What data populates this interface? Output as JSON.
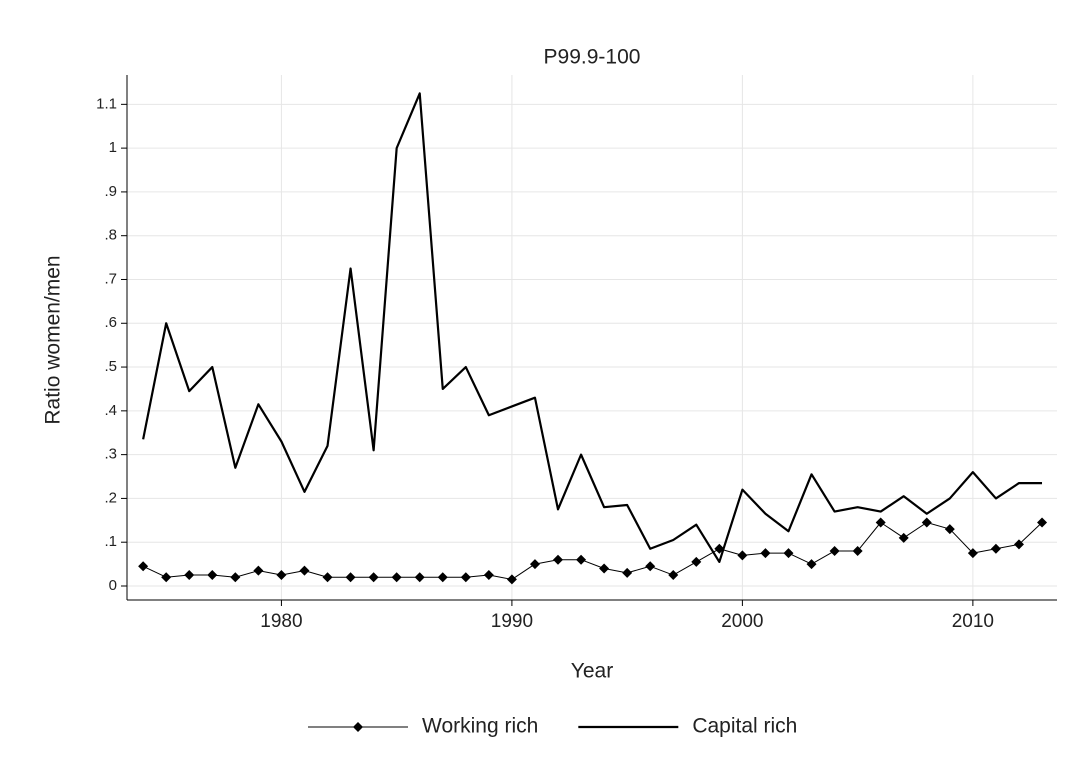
{
  "chart_data": {
    "type": "line",
    "title": "P99.9-100",
    "xlabel": "Year",
    "ylabel": "Ratio women/men",
    "x": [
      1974,
      1975,
      1976,
      1977,
      1978,
      1979,
      1980,
      1981,
      1982,
      1983,
      1984,
      1985,
      1986,
      1987,
      1988,
      1989,
      1990,
      1991,
      1992,
      1993,
      1994,
      1995,
      1996,
      1997,
      1998,
      1999,
      2000,
      2001,
      2002,
      2003,
      2004,
      2005,
      2006,
      2007,
      2008,
      2009,
      2010,
      2011,
      2012,
      2013
    ],
    "series": [
      {
        "name": "Working rich",
        "color": "#000000",
        "marker": "diamond",
        "values": [
          0.045,
          0.02,
          0.025,
          0.025,
          0.02,
          0.035,
          0.025,
          0.035,
          0.02,
          0.02,
          0.02,
          0.02,
          0.02,
          0.02,
          0.02,
          0.025,
          0.015,
          0.05,
          0.06,
          0.06,
          0.04,
          0.03,
          0.045,
          0.025,
          0.055,
          0.085,
          0.07,
          0.075,
          0.075,
          0.05,
          0.08,
          0.08,
          0.145,
          0.11,
          0.145,
          0.13,
          0.075,
          0.085,
          0.095,
          0.145
        ]
      },
      {
        "name": "Capital rich",
        "color": "#000000",
        "values": [
          0.335,
          0.6,
          0.445,
          0.5,
          0.27,
          0.415,
          0.33,
          0.215,
          0.32,
          0.725,
          0.31,
          1.0,
          1.125,
          0.45,
          0.5,
          0.39,
          0.41,
          0.43,
          0.175,
          0.3,
          0.18,
          0.185,
          0.085,
          0.105,
          0.14,
          0.055,
          0.22,
          0.165,
          0.125,
          0.255,
          0.17,
          0.18,
          0.17,
          0.205,
          0.165,
          0.2,
          0.26,
          0.2,
          0.235,
          0.235
        ]
      }
    ],
    "xlim": [
      1973.3,
      2013.65
    ],
    "ylim": [
      -0.032,
      1.167
    ],
    "xticks": [
      1980,
      1990,
      2000,
      2010
    ],
    "yticks": [
      0,
      {
        "value": 0.1,
        "label": ".1"
      },
      {
        "value": 0.2,
        "label": ".2"
      },
      {
        "value": 0.3,
        "label": ".3"
      },
      {
        "value": 0.4,
        "label": ".4"
      },
      {
        "value": 0.5,
        "label": ".5"
      },
      {
        "value": 0.6,
        "label": ".6"
      },
      {
        "value": 0.7,
        "label": ".7"
      },
      {
        "value": 0.8,
        "label": ".8"
      },
      {
        "value": 0.9,
        "label": ".9"
      },
      1,
      1.1
    ],
    "grid": true,
    "legend": "bottom"
  }
}
